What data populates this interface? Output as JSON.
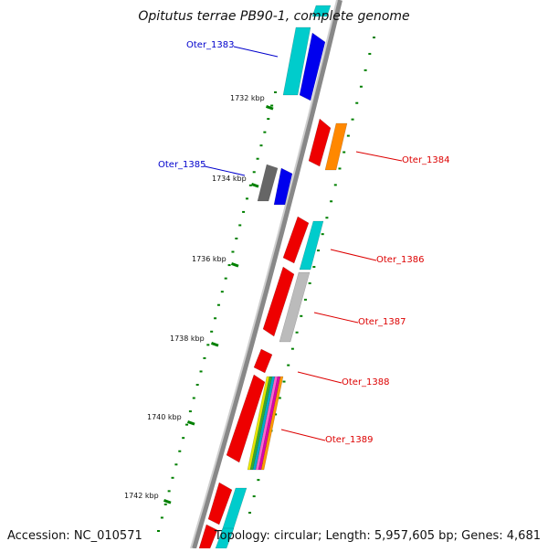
{
  "title": "Opitutus terrae PB90-1, complete genome",
  "footer": {
    "accession": "Accession: NC_010571",
    "summary": "Topology: circular; Length: 5,957,605 bp; Genes: 4,681"
  },
  "ruler_labels": [
    "1732 kbp",
    "1734 kbp",
    "1736 kbp",
    "1738 kbp",
    "1740 kbp",
    "1742 kbp"
  ],
  "gene_labels": [
    {
      "text": "Oter_1383",
      "color": "#0000cc",
      "side": "left"
    },
    {
      "text": "Oter_1384",
      "color": "#dd0000",
      "side": "right"
    },
    {
      "text": "Oter_1385",
      "color": "#0000cc",
      "side": "left"
    },
    {
      "text": "Oter_1386",
      "color": "#dd0000",
      "side": "right"
    },
    {
      "text": "Oter_1387",
      "color": "#dd0000",
      "side": "right"
    },
    {
      "text": "Oter_1388",
      "color": "#dd0000",
      "side": "right"
    },
    {
      "text": "Oter_1389",
      "color": "#dd0000",
      "side": "right"
    }
  ],
  "colors": {
    "backbone": "#888888",
    "tick": "#008000",
    "red": "#ee0000",
    "orange": "#ff8800",
    "blue": "#0000ee",
    "cyan": "#00cccc",
    "grey": "#666666",
    "lightgrey": "#bbbbbb"
  }
}
